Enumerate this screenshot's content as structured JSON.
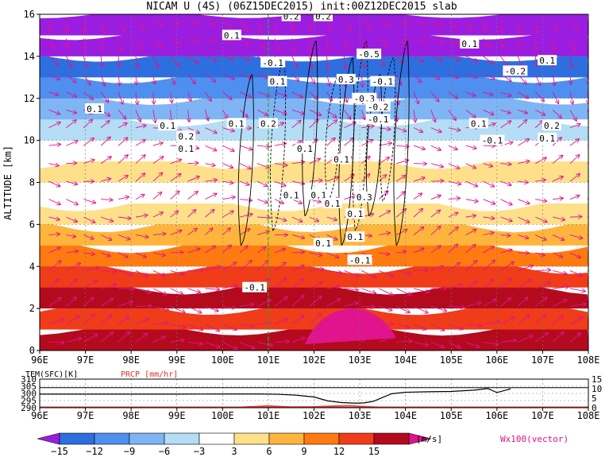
{
  "chart_data": [
    {
      "type": "heatmap",
      "title": "NICAM U (4S) (06Z15DEC2015) init:00Z12DEC2015 slab",
      "xlabel": "",
      "ylabel": "ALTITUDE [km]",
      "xlim": [
        96,
        108
      ],
      "ylim": [
        0,
        16
      ],
      "x_ticks": [
        "96E",
        "97E",
        "98E",
        "99E",
        "100E",
        "101E",
        "102E",
        "103E",
        "104E",
        "105E",
        "106E",
        "107E",
        "108E"
      ],
      "y_ticks": [
        "0",
        "2",
        "4",
        "6",
        "8",
        "10",
        "12",
        "14",
        "16"
      ],
      "grid": true,
      "reference_longitude": 101,
      "color_scale": {
        "unit": "[m/s]",
        "levels": [
          -15,
          -12,
          -9,
          -6,
          -3,
          3,
          6,
          9,
          12,
          15
        ],
        "level_labels": [
          "−15",
          "−12",
          "−9",
          "−6",
          "−3",
          "3",
          "6",
          "9",
          "12",
          "15"
        ],
        "colors": [
          "#9b1ee0",
          "#2e6fe0",
          "#4f8ff0",
          "#7fb5f5",
          "#b5ddf5",
          "#ffffff",
          "#ffe08a",
          "#ffb53c",
          "#ff7a10",
          "#f03c18",
          "#b40a1e",
          "#e0148c"
        ]
      },
      "vector_label": "Wx100(vector)",
      "contour_labels": [
        {
          "text": "0.1",
          "x": 100.2,
          "y": 15.0
        },
        {
          "text": "0.2",
          "x": 101.5,
          "y": 15.9
        },
        {
          "text": "0.2",
          "x": 102.2,
          "y": 15.9
        },
        {
          "text": "-0.1",
          "x": 101.1,
          "y": 13.7
        },
        {
          "text": "0.1",
          "x": 101.2,
          "y": 12.8
        },
        {
          "text": "0.3",
          "x": 102.7,
          "y": 12.9
        },
        {
          "text": "-0.5",
          "x": 103.2,
          "y": 14.1
        },
        {
          "text": "-0.1",
          "x": 103.5,
          "y": 12.8
        },
        {
          "text": "-0.3",
          "x": 103.1,
          "y": 12.0
        },
        {
          "text": "-0.2",
          "x": 103.4,
          "y": 11.6
        },
        {
          "text": "-0.1",
          "x": 103.4,
          "y": 11.0
        },
        {
          "text": "0.1",
          "x": 105.4,
          "y": 14.6
        },
        {
          "text": "0.1",
          "x": 107.1,
          "y": 13.8
        },
        {
          "text": "-0.2",
          "x": 106.4,
          "y": 13.3
        },
        {
          "text": "0.1",
          "x": 97.2,
          "y": 11.5
        },
        {
          "text": "0.1",
          "x": 98.8,
          "y": 10.7
        },
        {
          "text": "0.2",
          "x": 99.2,
          "y": 10.2
        },
        {
          "text": "0.1",
          "x": 99.2,
          "y": 9.6
        },
        {
          "text": "0.1",
          "x": 100.3,
          "y": 10.8
        },
        {
          "text": "0.2",
          "x": 101.0,
          "y": 10.8
        },
        {
          "text": "0.1",
          "x": 101.8,
          "y": 9.6
        },
        {
          "text": "0.1",
          "x": 102.6,
          "y": 9.1
        },
        {
          "text": "0.1",
          "x": 102.1,
          "y": 7.4
        },
        {
          "text": "0.3",
          "x": 103.1,
          "y": 7.3
        },
        {
          "text": "0.1",
          "x": 102.9,
          "y": 6.5
        },
        {
          "text": "0.1",
          "x": 101.5,
          "y": 7.4
        },
        {
          "text": "0.1",
          "x": 102.2,
          "y": 5.1
        },
        {
          "text": "0.1",
          "x": 102.4,
          "y": 7.0
        },
        {
          "text": "0.1",
          "x": 102.9,
          "y": 5.4
        },
        {
          "text": "-0.1",
          "x": 103.0,
          "y": 4.3
        },
        {
          "text": "-0.1",
          "x": 100.7,
          "y": 3.0
        },
        {
          "text": "0.1",
          "x": 105.6,
          "y": 10.8
        },
        {
          "text": "-0.1",
          "x": 105.9,
          "y": 10.0
        },
        {
          "text": "0.2",
          "x": 107.2,
          "y": 10.7
        },
        {
          "text": "0.1",
          "x": 107.1,
          "y": 10.1
        }
      ]
    },
    {
      "type": "line",
      "title": "",
      "xlim": [
        96,
        108
      ],
      "x_ticks": [
        "96E",
        "97E",
        "98E",
        "99E",
        "100E",
        "101E",
        "102E",
        "103E",
        "104E",
        "105E",
        "106E",
        "107E",
        "108E"
      ],
      "left_axis": {
        "label": "TEM(SFC)[K]",
        "ticks": [
          "290",
          "295",
          "300",
          "305",
          "310"
        ],
        "range": [
          290,
          310
        ]
      },
      "right_axis": {
        "label": "PRCP [mm/hr]",
        "ticks": [
          "0",
          "5",
          "10",
          "15"
        ],
        "range": [
          0,
          15
        ]
      },
      "series": [
        {
          "name": "TEM(SFC)[K]",
          "axis": "left",
          "color": "#000000",
          "x": [
            96,
            97,
            98,
            99,
            100,
            100.8,
            101.2,
            101.6,
            102,
            102.3,
            102.6,
            102.9,
            103.1,
            103.3,
            103.5,
            103.7,
            104,
            104.5,
            105,
            105.5,
            105.8,
            106,
            106.3
          ],
          "y": [
            299.5,
            299.5,
            299.5,
            299.5,
            299.6,
            299.6,
            299.4,
            298.8,
            297.5,
            294.8,
            293.6,
            293.2,
            293.4,
            294.5,
            297.2,
            299.8,
            300.8,
            301.2,
            301.4,
            302.3,
            303.4,
            300.6,
            303.2
          ]
        },
        {
          "name": "PRCP [mm/hr]",
          "axis": "right",
          "color": "#e03030",
          "x": [
            96,
            99,
            100,
            100.5,
            101,
            101.5,
            102,
            102.4,
            102.8,
            103,
            103.3,
            103.6,
            104,
            105,
            106,
            107,
            108
          ],
          "y": [
            0,
            0,
            0,
            0.5,
            1.0,
            0.5,
            0.6,
            0.9,
            1.1,
            0.8,
            0.5,
            0.2,
            0,
            0,
            0,
            0,
            0
          ]
        }
      ]
    }
  ]
}
